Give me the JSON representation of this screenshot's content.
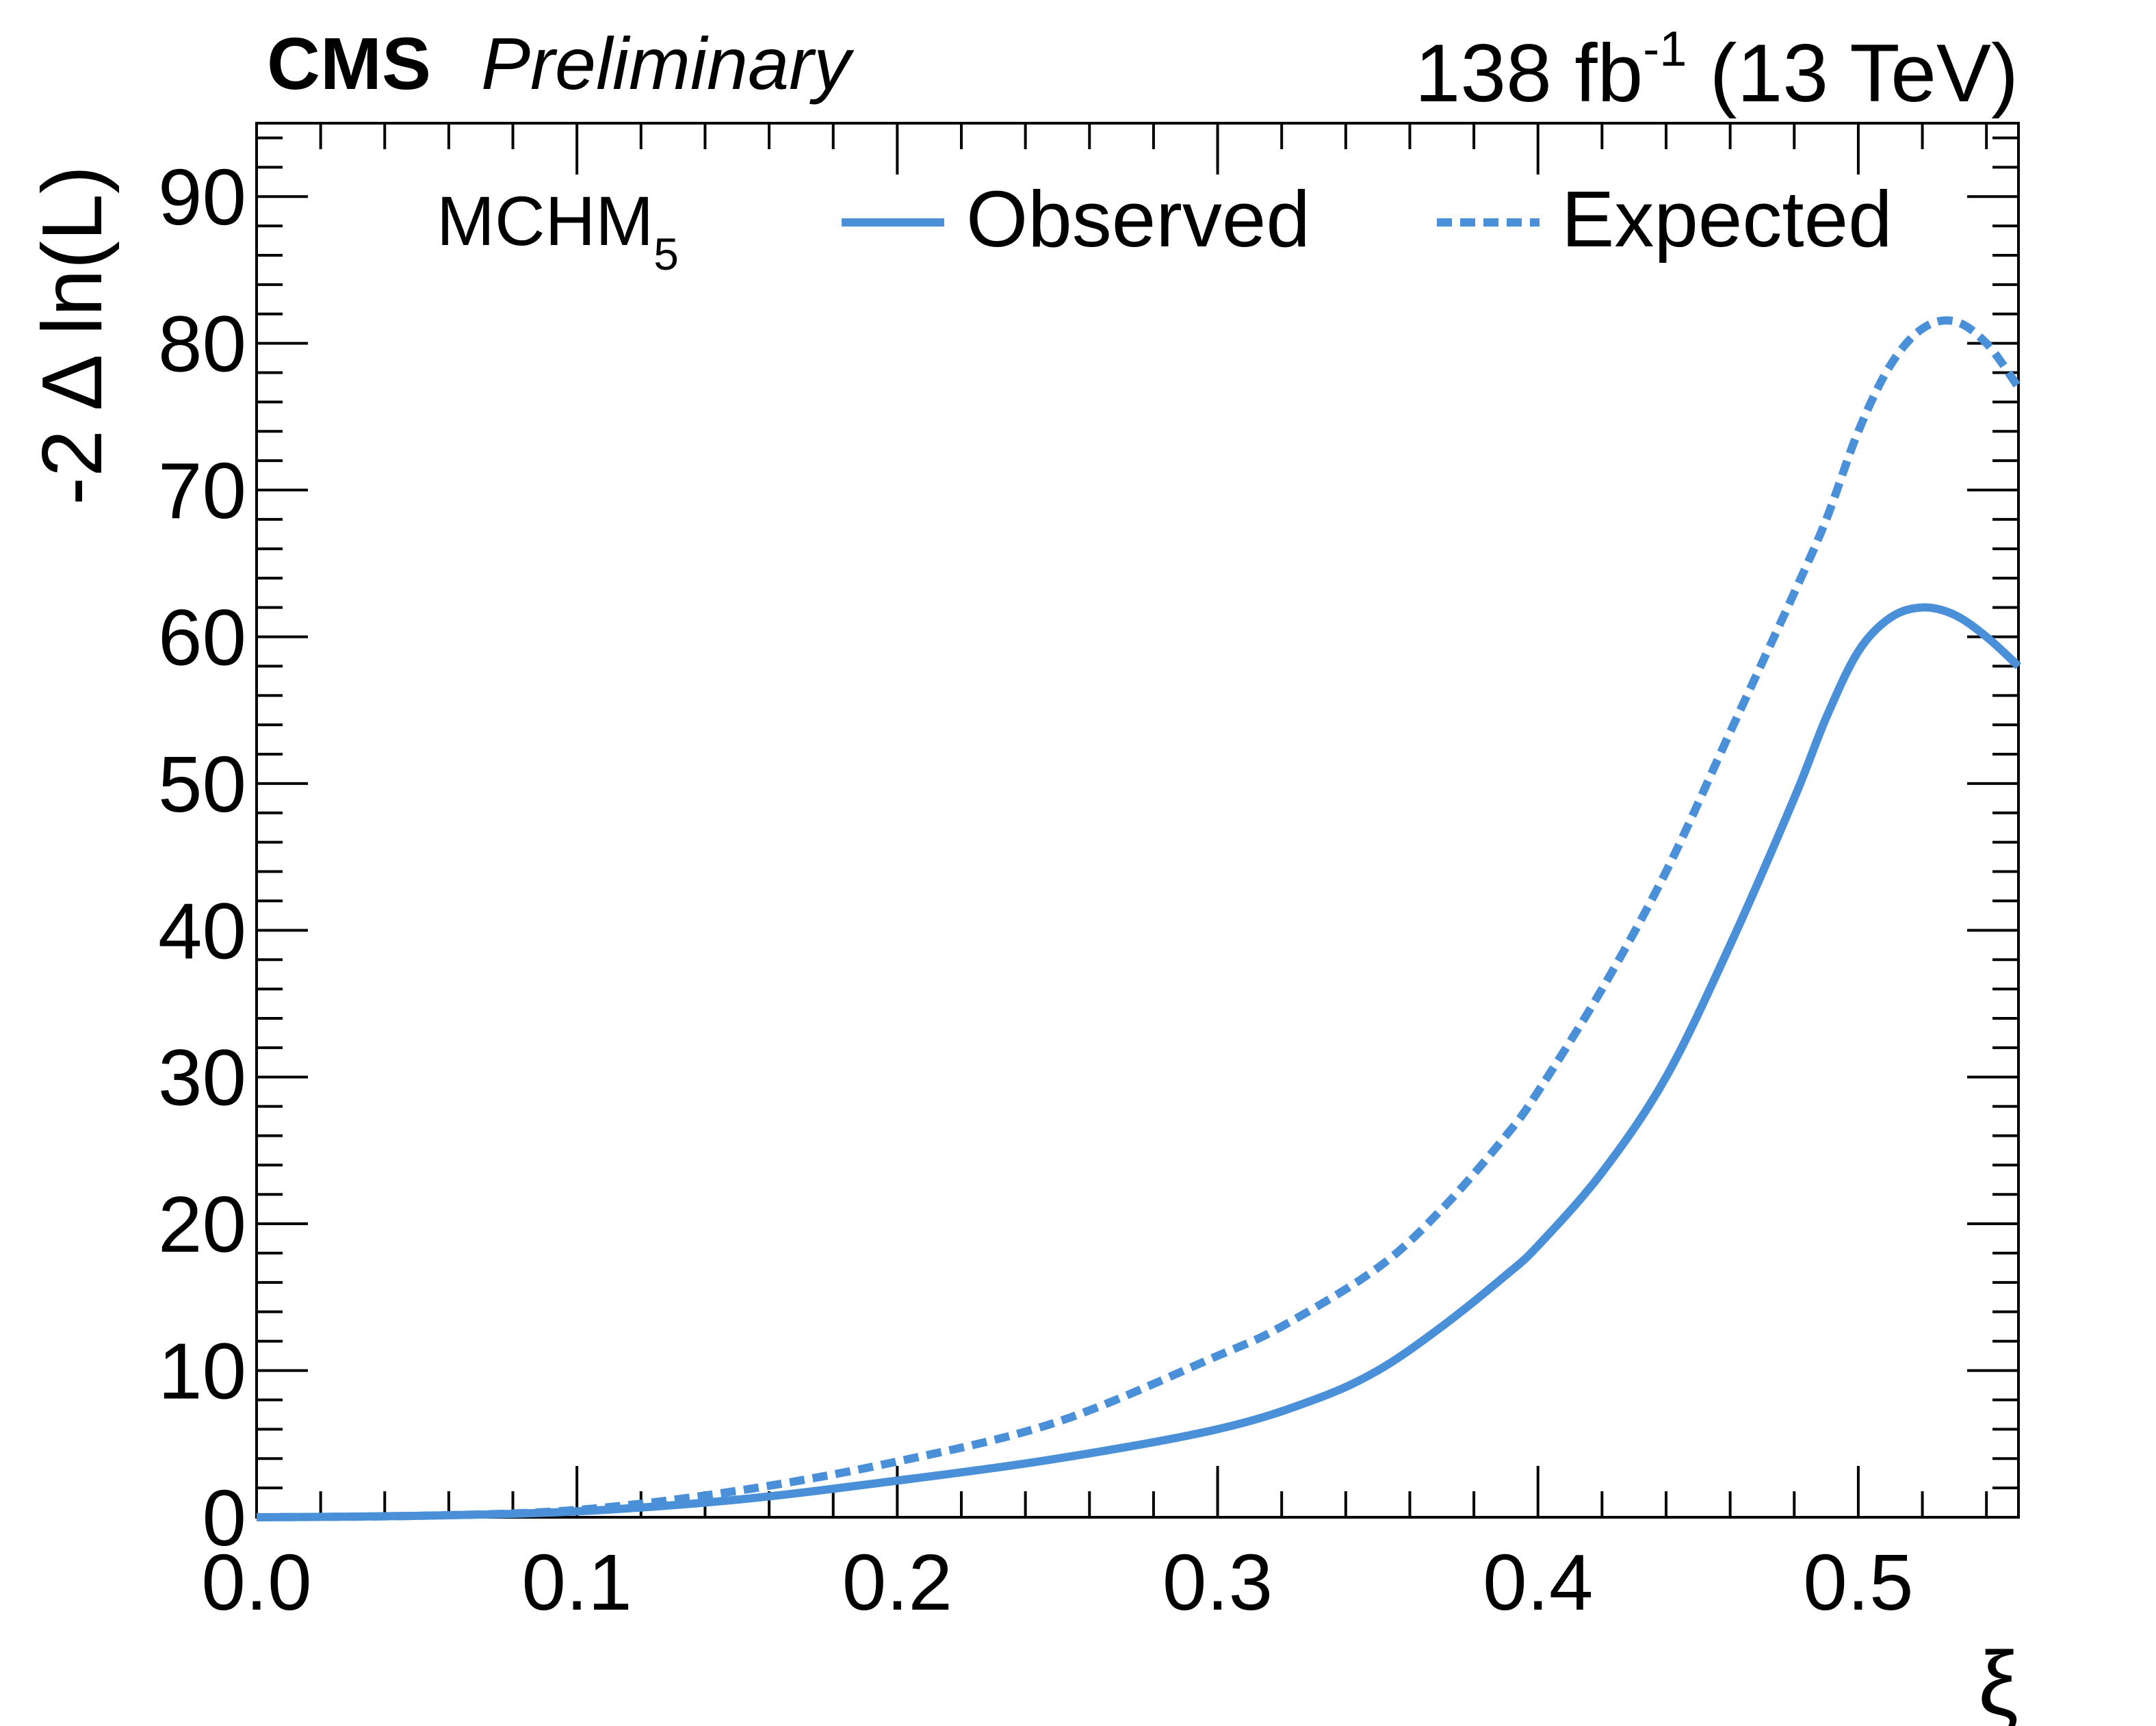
{
  "header": {
    "experiment": "CMS",
    "status": "Preliminary",
    "lumi_value": "138 fb",
    "lumi_exp": "-1",
    "energy": " (13 TeV)"
  },
  "legend": {
    "model": "MCHM",
    "model_sub": "5",
    "observed_label": "Observed",
    "expected_label": "Expected"
  },
  "chart_data": {
    "type": "line",
    "xlabel": "ξ",
    "ylabel": "-2 Δ ln(L)",
    "xlim": [
      0,
      0.55
    ],
    "ylim": [
      0,
      95
    ],
    "x_ticks": [
      "0.0",
      "0.1",
      "0.2",
      "0.3",
      "0.4",
      "0.5"
    ],
    "y_ticks": [
      "0",
      "10",
      "20",
      "30",
      "40",
      "50",
      "60",
      "70",
      "80",
      "90"
    ],
    "grid": false,
    "legend_position": "top",
    "color": "#4a90d9",
    "series": [
      {
        "name": "Observed",
        "style": "solid",
        "x": [
          0,
          0.05,
          0.1,
          0.15,
          0.2,
          0.25,
          0.3,
          0.33,
          0.35,
          0.37,
          0.39,
          0.4,
          0.42,
          0.44,
          0.46,
          0.48,
          0.49,
          0.5,
          0.51,
          0.52,
          0.53,
          0.54,
          0.55
        ],
        "y": [
          0,
          0.1,
          0.4,
          1.2,
          2.5,
          4.0,
          6.0,
          8.0,
          10.0,
          13.0,
          16.5,
          18.5,
          23.5,
          30.0,
          39.0,
          49.0,
          54.5,
          59.0,
          61.3,
          62.0,
          61.5,
          60.0,
          58.0
        ]
      },
      {
        "name": "Expected",
        "style": "dashed",
        "x": [
          0,
          0.05,
          0.1,
          0.15,
          0.2,
          0.25,
          0.3,
          0.32,
          0.35,
          0.37,
          0.39,
          0.4,
          0.42,
          0.44,
          0.46,
          0.48,
          0.49,
          0.5,
          0.51,
          0.52,
          0.53,
          0.54,
          0.55
        ],
        "y": [
          0,
          0.1,
          0.5,
          1.8,
          3.8,
          6.5,
          11.0,
          13.0,
          17.0,
          21.0,
          26.0,
          29.0,
          36.0,
          44.0,
          53.5,
          63.0,
          68.0,
          74.0,
          78.5,
          81.0,
          81.5,
          80.0,
          77.0
        ]
      }
    ]
  }
}
